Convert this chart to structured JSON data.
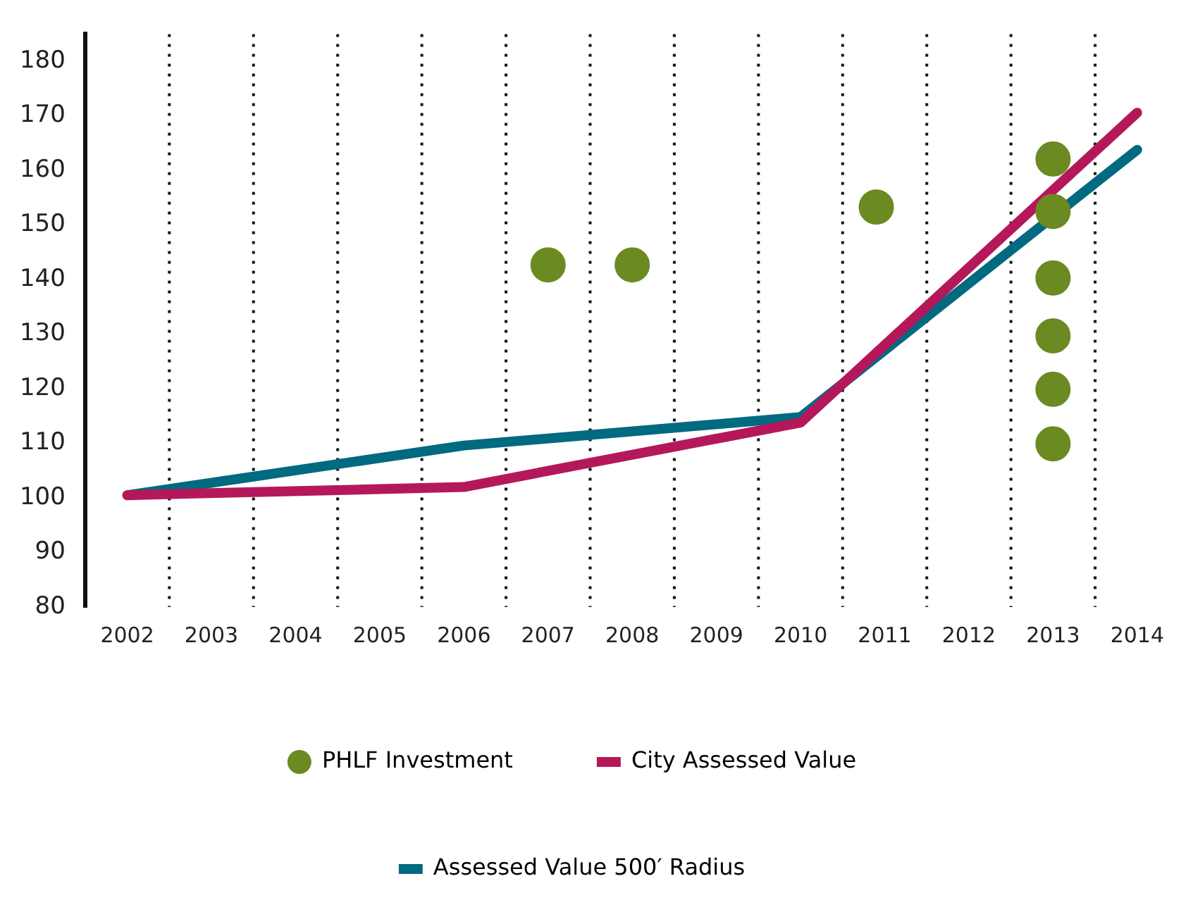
{
  "chart_data": {
    "type": "line",
    "x": [
      2002,
      2006,
      2010,
      2014
    ],
    "series": [
      {
        "name": "PHLF Investment",
        "type": "scatter",
        "marker": "circle",
        "color": "#6b8a21",
        "x": [
          2007,
          2008,
          2010.9,
          2013,
          2013,
          2013,
          2013,
          2013,
          2013
        ],
        "values": [
          142.7,
          142.7,
          153.3,
          162.1,
          152.5,
          140.3,
          129.7,
          119.9,
          109.9
        ]
      },
      {
        "name": "City Assessed Value",
        "color": "#b5185a",
        "values": [
          100.5,
          102,
          113.8,
          170.6
        ]
      },
      {
        "name": "Assessed Value 500′ Radius",
        "color": "#006a80",
        "values": [
          100.5,
          109.6,
          114.8,
          163.8
        ]
      }
    ],
    "xlim": [
      2001.5,
      2014
    ],
    "xticks": [
      2002,
      2003,
      2004,
      2005,
      2006,
      2007,
      2008,
      2009,
      2010,
      2011,
      2012,
      2013,
      2014
    ],
    "ylim": [
      80,
      185
    ],
    "yticks": [
      80,
      90,
      100,
      110,
      120,
      130,
      140,
      150,
      160,
      170,
      180
    ],
    "grid": "x",
    "legend": "bottom",
    "marker": "none",
    "line_style": "solid"
  }
}
